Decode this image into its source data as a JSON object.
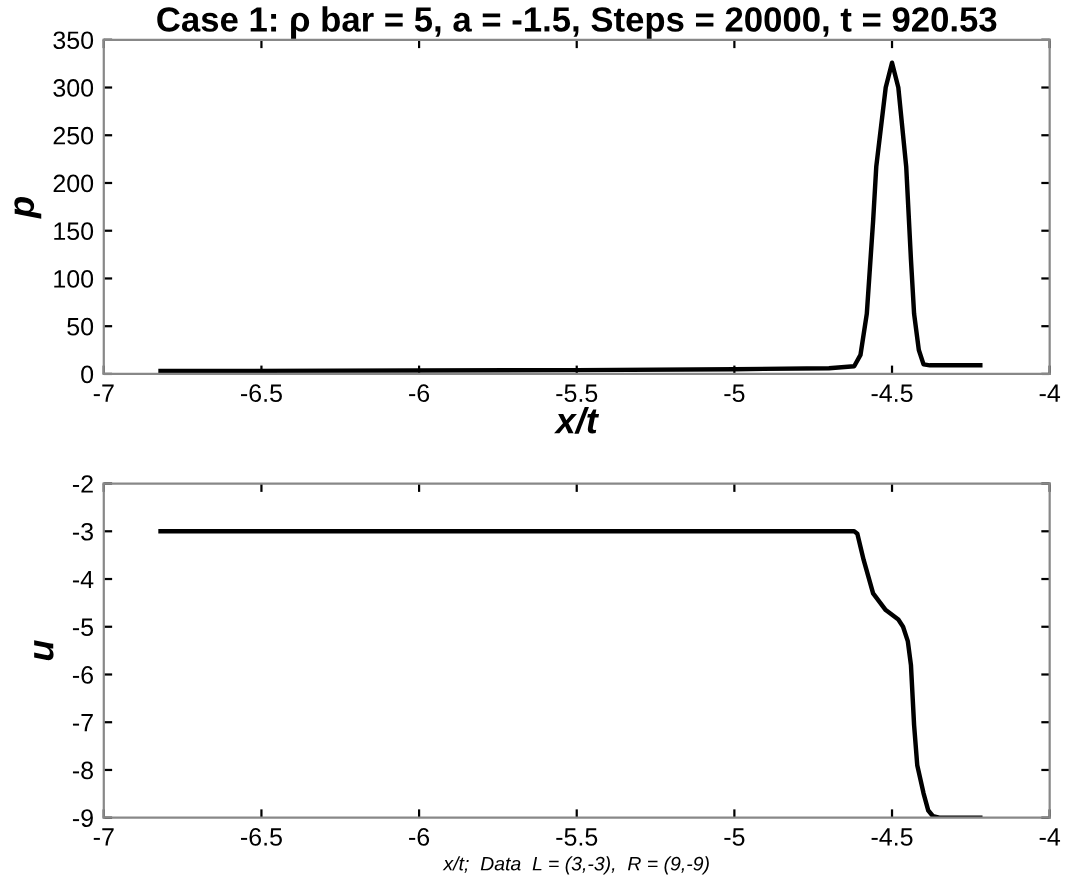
{
  "chart_data": [
    {
      "type": "line",
      "title": "Case 1: ρ bar = 5, a = -1.5, Steps = 20000, t = 920.53",
      "xlabel": "x/t",
      "ylabel": "p",
      "xlim": [
        -7,
        -4
      ],
      "ylim": [
        0,
        350
      ],
      "xticks": [
        -7,
        -6.5,
        -6,
        -5.5,
        -5,
        -4.5,
        -4
      ],
      "yticks": [
        0,
        50,
        100,
        150,
        200,
        250,
        300,
        350
      ],
      "grid": false,
      "legend": false,
      "series": [
        {
          "color": "#000000",
          "x": [
            -6.82,
            -6,
            -5.5,
            -5,
            -4.7,
            -4.62,
            -4.6,
            -4.58,
            -4.56,
            -4.55,
            -4.52,
            -4.5,
            -4.48,
            -4.455,
            -4.44,
            -4.43,
            -4.415,
            -4.4,
            -4.38,
            -4.22
          ],
          "values": [
            3,
            3.5,
            4,
            5,
            6,
            8,
            20,
            63,
            160,
            217,
            300,
            326,
            300,
            217,
            120,
            63,
            25,
            10,
            9,
            9
          ]
        }
      ]
    },
    {
      "type": "line",
      "xlabel": "x/t;  Data  L = (3,-3),  R = (9,-9)",
      "ylabel": "u",
      "xlim": [
        -7,
        -4
      ],
      "ylim": [
        -9,
        -2
      ],
      "xticks": [
        -7,
        -6.5,
        -6,
        -5.5,
        -5,
        -4.5,
        -4
      ],
      "yticks": [
        -9,
        -8,
        -7,
        -6,
        -5,
        -4,
        -3,
        -2
      ],
      "grid": false,
      "legend": false,
      "series": [
        {
          "color": "#000000",
          "x": [
            -6.82,
            -4.62,
            -4.61,
            -4.59,
            -4.56,
            -4.52,
            -4.48,
            -4.465,
            -4.45,
            -4.44,
            -4.43,
            -4.42,
            -4.4,
            -4.385,
            -4.37,
            -4.35,
            -4.22
          ],
          "values": [
            -3,
            -3,
            -3.05,
            -3.6,
            -4.3,
            -4.65,
            -4.85,
            -5.0,
            -5.3,
            -5.8,
            -7.06,
            -7.9,
            -8.49,
            -8.85,
            -8.97,
            -9,
            -9
          ]
        }
      ]
    }
  ]
}
